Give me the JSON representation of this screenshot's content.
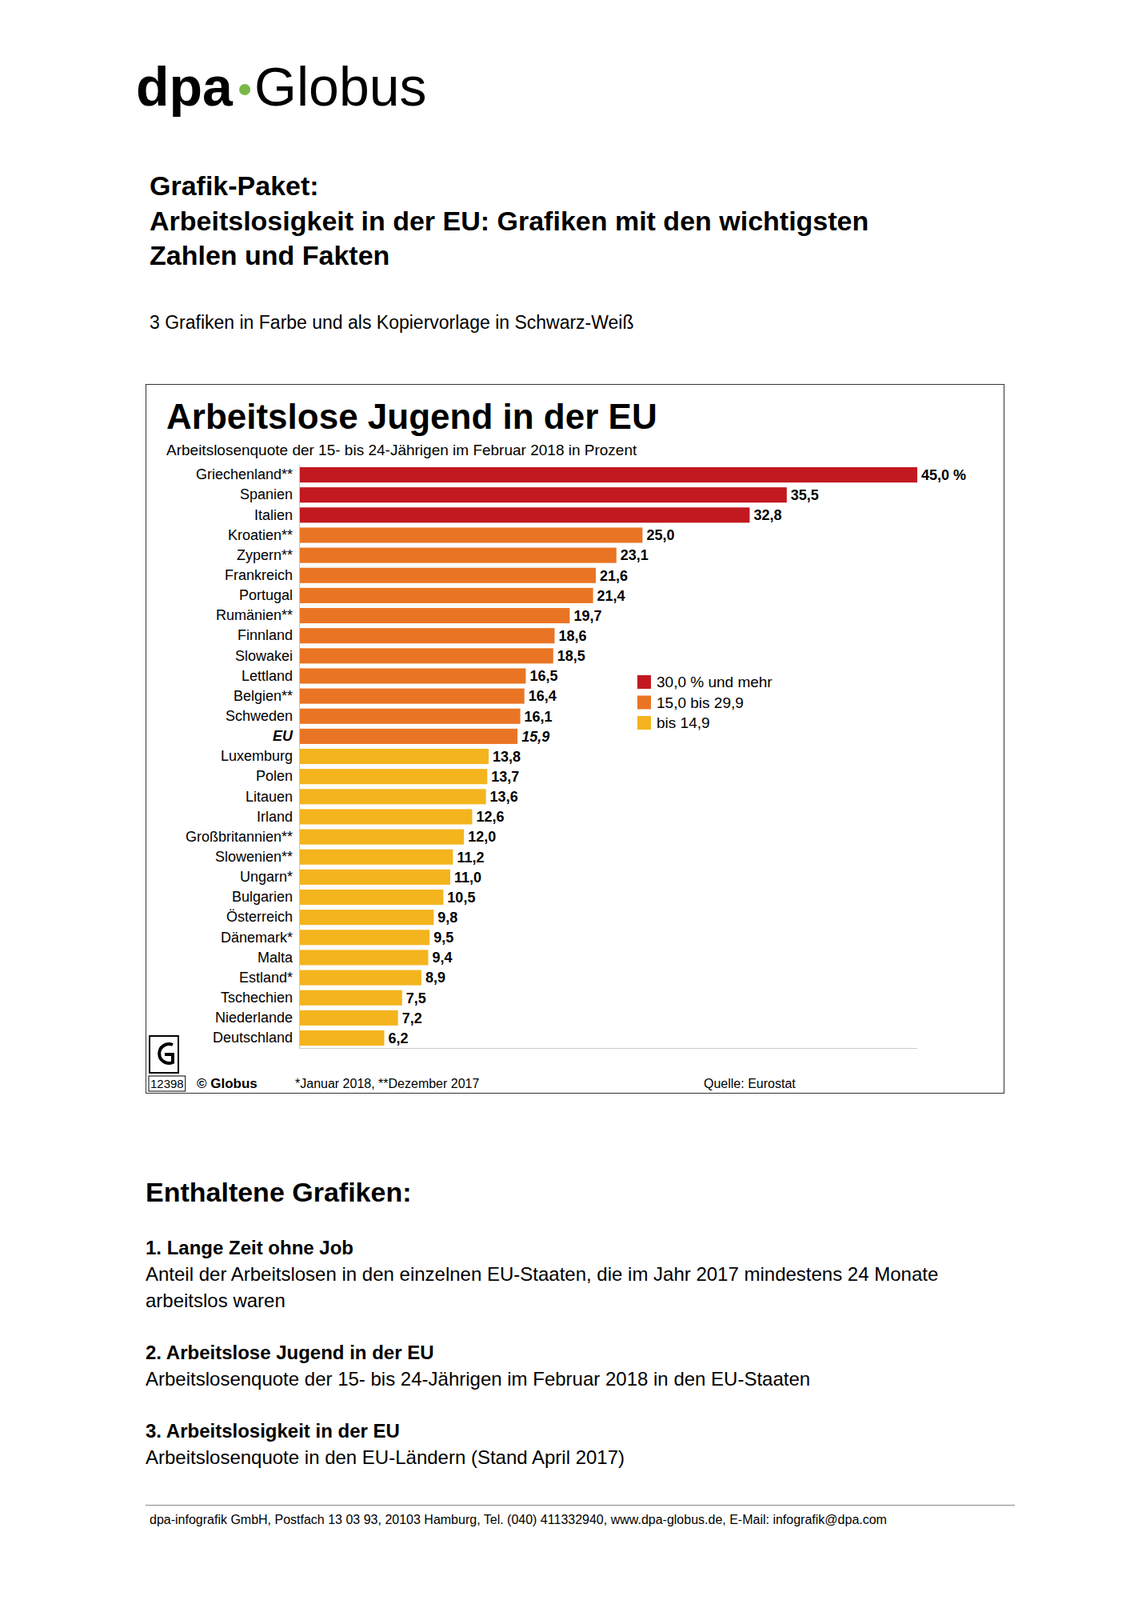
{
  "header": {
    "logo_left": "dpa",
    "logo_right": "Globus",
    "label": "Grafik-Paket:",
    "title": "Arbeitslosigkeit in der EU: Grafiken mit den wichtigsten Zahlen und Fakten",
    "subtitle": "3 Grafiken in Farbe und als Kopiervorlage in Schwarz-Weiß"
  },
  "chart_data": {
    "type": "bar",
    "orientation": "horizontal",
    "title": "Arbeitslose Jugend in der EU",
    "subtitle": "Arbeitslosenquote der 15- bis 24-Jährigen im Februar 2018 in Prozent",
    "categories": [
      "Griechenland**",
      "Spanien",
      "Italien",
      "Kroatien**",
      "Zypern**",
      "Frankreich",
      "Portugal",
      "Rumänien**",
      "Finnland",
      "Slowakei",
      "Lettland",
      "Belgien**",
      "Schweden",
      "EU",
      "Luxemburg",
      "Polen",
      "Litauen",
      "Irland",
      "Großbritannien**",
      "Slowenien**",
      "Ungarn*",
      "Bulgarien",
      "Österreich",
      "Dänemark*",
      "Malta",
      "Estland*",
      "Tschechien",
      "Niederlande",
      "Deutschland"
    ],
    "values": [
      45.0,
      35.5,
      32.8,
      25.0,
      23.1,
      21.6,
      21.4,
      19.7,
      18.6,
      18.5,
      16.5,
      16.4,
      16.1,
      15.9,
      13.8,
      13.7,
      13.6,
      12.6,
      12.0,
      11.2,
      11.0,
      10.5,
      9.8,
      9.5,
      9.4,
      8.9,
      7.5,
      7.2,
      6.2
    ],
    "value_labels": [
      "45,0 %",
      "35,5",
      "32,8",
      "25,0",
      "23,1",
      "21,6",
      "21,4",
      "19,7",
      "18,6",
      "18,5",
      "16,5",
      "16,4",
      "16,1",
      "15,9",
      "13,8",
      "13,7",
      "13,6",
      "12,6",
      "12,0",
      "11,2",
      "11,0",
      "10,5",
      "9,8",
      "9,5",
      "9,4",
      "8,9",
      "7,5",
      "7,2",
      "6,2"
    ],
    "colors": [
      "#c1191f",
      "#c1191f",
      "#c1191f",
      "#e97524",
      "#e97524",
      "#e97524",
      "#e97524",
      "#e97524",
      "#e97524",
      "#e97524",
      "#e97524",
      "#e97524",
      "#e97524",
      "#e97524",
      "#f4b41e",
      "#f4b41e",
      "#f4b41e",
      "#f4b41e",
      "#f4b41e",
      "#f4b41e",
      "#f4b41e",
      "#f4b41e",
      "#f4b41e",
      "#f4b41e",
      "#f4b41e",
      "#f4b41e",
      "#f4b41e",
      "#f4b41e",
      "#f4b41e"
    ],
    "xlim": [
      0,
      45
    ],
    "tick_labels": "y",
    "data_labels": true,
    "color_classes": [
      {
        "label": "30,0 % und mehr",
        "color": "#c1191f"
      },
      {
        "label": "15,0 bis 29,9",
        "color": "#e97524"
      },
      {
        "label": "bis 14,9",
        "color": "#f4b41e"
      }
    ],
    "graphic_number": "12398",
    "credit": "© Globus",
    "footnote": "*Januar 2018, **Dezember 2017",
    "source": "Quelle: Eurostat"
  },
  "contents": {
    "heading": "Enthaltene Grafiken:",
    "items": [
      {
        "title": "1. Lange Zeit ohne Job",
        "description": "Anteil der Arbeitslosen in den einzelnen EU-Staaten, die im Jahr 2017 mindestens 24 Monate arbeitslos waren"
      },
      {
        "title": "2. Arbeitslose Jugend in der EU",
        "description": "Arbeitslosenquote der 15- bis 24-Jährigen im Februar 2018 in den EU-Staaten"
      },
      {
        "title": "3. Arbeitslosigkeit in der EU",
        "description": "Arbeitslosenquote in den EU-Ländern (Stand April 2017)"
      }
    ]
  },
  "footer": "dpa-infografik GmbH, Postfach 13 03 93, 20103 Hamburg, Tel. (040) 411332940, www.dpa-globus.de, E-Mail: infografik@dpa.com"
}
